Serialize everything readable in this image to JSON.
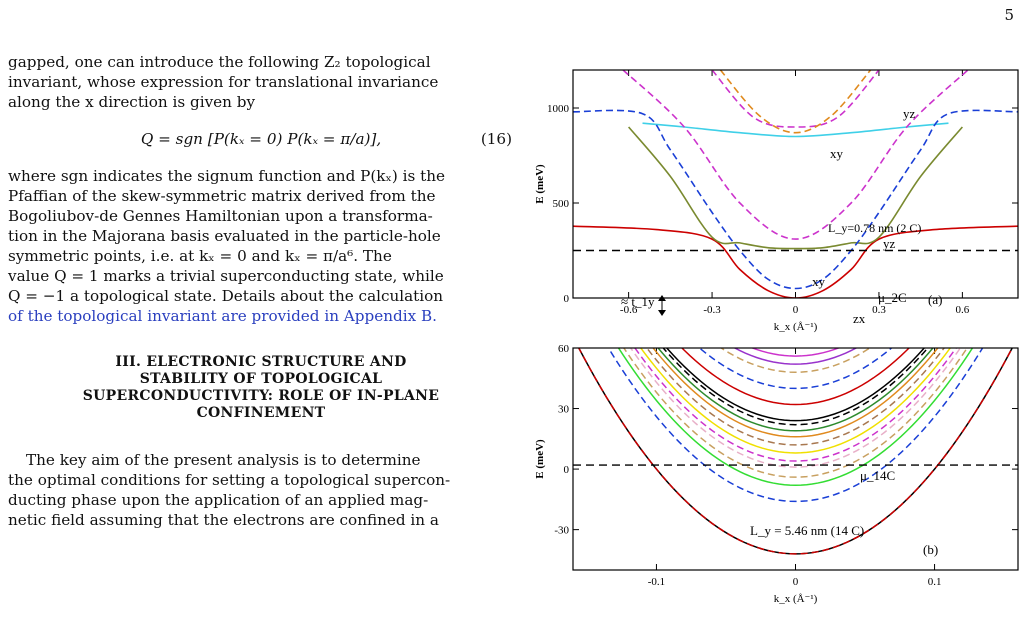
{
  "page_number": "5",
  "para1": {
    "lines": [
      "gapped, one can introduce the following Z₂ topological",
      "invariant, whose expression for translational invariance",
      "along the x direction is given by"
    ]
  },
  "equation": {
    "text": "Q = sgn [P(kₓ = 0) P(kₓ = π/a)],",
    "number": "(16)"
  },
  "para2": {
    "lines": [
      "where sgn indicates the signum function and P(kₓ) is the",
      "Pfaffian of the skew-symmetric matrix derived from the",
      "Bogoliubov-de Gennes Hamiltonian upon a transforma-",
      "tion in the Majorana basis evaluated in the particle-hole",
      "symmetric points, i.e. at kₓ = 0 and kₓ = π/a⁶. The",
      "value Q = 1 marks a trivial superconducting state, while",
      "Q = −1 a topological state. Details about the calculation",
      "of the topological invariant are provided in Appendix B."
    ]
  },
  "section_heading": {
    "lines": [
      "III.  ELECTRONIC STRUCTURE AND",
      "STABILITY OF TOPOLOGICAL",
      "SUPERCONDUCTIVITY: ROLE OF IN-PLANE",
      "CONFINEMENT"
    ]
  },
  "para3": {
    "lines": [
      "The key aim of the present analysis is to determine",
      "the optimal conditions for setting a topological supercon-",
      "ducting phase upon the application of an applied mag-",
      "netic field assuming that the electrons are confined in a"
    ]
  },
  "colors": {
    "black": "#000000",
    "red": "#cc0000",
    "blue": "#1a3fd6",
    "green": "#2e8b2e",
    "magenta": "#cc33cc",
    "orange": "#e08a1e",
    "cyan": "#3fd0e8",
    "olive": "#7a8a30",
    "yellow": "#f0e000",
    "lime": "#33dd33",
    "tan": "#c8a060",
    "pink": "#e8b0c8",
    "purple": "#9933cc",
    "brown": "#a87850"
  },
  "chart_data": [
    {
      "type": "line",
      "panel_label": "(a)",
      "xlabel": "k_x (Å⁻¹)",
      "ylabel": "E (meV)",
      "xlim": [
        -0.8,
        0.8
      ],
      "ylim": [
        0,
        1200
      ],
      "x_ticks": [
        -0.6,
        -0.3,
        0,
        0.3,
        0.6
      ],
      "x_tick_labels": [
        "-0.6",
        "-0.3",
        "0",
        "0.3",
        "0.6"
      ],
      "y_ticks": [
        0,
        500,
        1000
      ],
      "y_tick_labels": [
        "0",
        "500",
        "1000"
      ],
      "annotations": [
        "yz",
        "xy",
        "L_y=0.78 nm (2 C)",
        "yz",
        "xy",
        "≈ t_1y",
        "μ_2C",
        "zx",
        "(a)"
      ],
      "chemical_potential": 250,
      "series": [
        {
          "style": "solid",
          "color": "red",
          "x": [
            -0.8,
            -0.5,
            -0.3,
            -0.2,
            -0.1,
            0,
            0.1,
            0.2,
            0.3,
            0.5,
            0.8
          ],
          "y": [
            378,
            360,
            310,
            150,
            40,
            0,
            40,
            150,
            310,
            360,
            378
          ]
        },
        {
          "style": "solid",
          "color": "olive",
          "x": [
            -0.6,
            -0.45,
            -0.3,
            -0.2,
            -0.1,
            0,
            0.1,
            0.2,
            0.3,
            0.45,
            0.6
          ],
          "y": [
            900,
            640,
            320,
            290,
            265,
            260,
            265,
            290,
            320,
            640,
            900
          ]
        },
        {
          "style": "solid",
          "color": "cyan",
          "x": [
            -0.55,
            -0.4,
            -0.2,
            0,
            0.2,
            0.4,
            0.55
          ],
          "y": [
            920,
            900,
            870,
            850,
            870,
            900,
            920
          ]
        },
        {
          "style": "dashed",
          "color": "blue",
          "x": [
            -0.8,
            -0.55,
            -0.45,
            -0.3,
            -0.2,
            -0.1,
            0,
            0.1,
            0.2,
            0.3,
            0.45,
            0.55,
            0.8
          ],
          "y": [
            980,
            970,
            780,
            450,
            250,
            100,
            50,
            100,
            250,
            450,
            780,
            970,
            980
          ]
        },
        {
          "style": "dashed",
          "color": "magenta",
          "x": [
            -0.62,
            -0.4,
            -0.2,
            0,
            0.2,
            0.4,
            0.62
          ],
          "y": [
            1200,
            900,
            500,
            310,
            500,
            900,
            1200
          ]
        },
        {
          "style": "dashed",
          "color": "magenta",
          "x": [
            -0.3,
            -0.15,
            0,
            0.15,
            0.3
          ],
          "y": [
            1200,
            950,
            900,
            950,
            1200
          ]
        },
        {
          "style": "dashed",
          "color": "orange",
          "x": [
            -0.27,
            -0.13,
            0,
            0.13,
            0.27
          ],
          "y": [
            1200,
            960,
            870,
            960,
            1200
          ]
        }
      ]
    },
    {
      "type": "line",
      "panel_label": "(b)",
      "xlabel": "k_x (Å⁻¹)",
      "ylabel": "E (meV)",
      "xlim": [
        -0.16,
        0.16
      ],
      "ylim": [
        -50,
        60
      ],
      "x_ticks": [
        -0.1,
        0,
        0.1
      ],
      "x_tick_labels": [
        "-0.1",
        "0",
        "0.1"
      ],
      "y_ticks": [
        -30,
        0,
        30,
        60
      ],
      "y_tick_labels": [
        "-30",
        "0",
        "30",
        "60"
      ],
      "annotations": [
        "μ_14C",
        "L_y = 5.46 nm (14 C)",
        "(b)"
      ],
      "chemical_potential": 2,
      "parabola_bands": [
        {
          "min": -42,
          "color": "black",
          "style": "solid"
        },
        {
          "min": -42,
          "color": "red",
          "style": "dashed"
        },
        {
          "min": -16,
          "color": "blue",
          "style": "dashed"
        },
        {
          "min": -8,
          "color": "lime",
          "style": "solid"
        },
        {
          "min": -4,
          "color": "tan",
          "style": "dashed"
        },
        {
          "min": 1,
          "color": "pink",
          "style": "dashed"
        },
        {
          "min": 4,
          "color": "magenta",
          "style": "dashed"
        },
        {
          "min": 8,
          "color": "yellow",
          "style": "solid"
        },
        {
          "min": 12,
          "color": "brown",
          "style": "dashed"
        },
        {
          "min": 16,
          "color": "orange",
          "style": "solid"
        },
        {
          "min": 19,
          "color": "green",
          "style": "solid"
        },
        {
          "min": 22,
          "color": "black",
          "style": "dashed"
        },
        {
          "min": 24,
          "color": "black",
          "style": "solid"
        },
        {
          "min": 32,
          "color": "red",
          "style": "solid"
        },
        {
          "min": 40,
          "color": "blue",
          "style": "dashed"
        },
        {
          "min": 48,
          "color": "tan",
          "style": "dashed"
        },
        {
          "min": 52,
          "color": "purple",
          "style": "solid"
        },
        {
          "min": 56,
          "color": "magenta",
          "style": "solid"
        }
      ]
    }
  ]
}
